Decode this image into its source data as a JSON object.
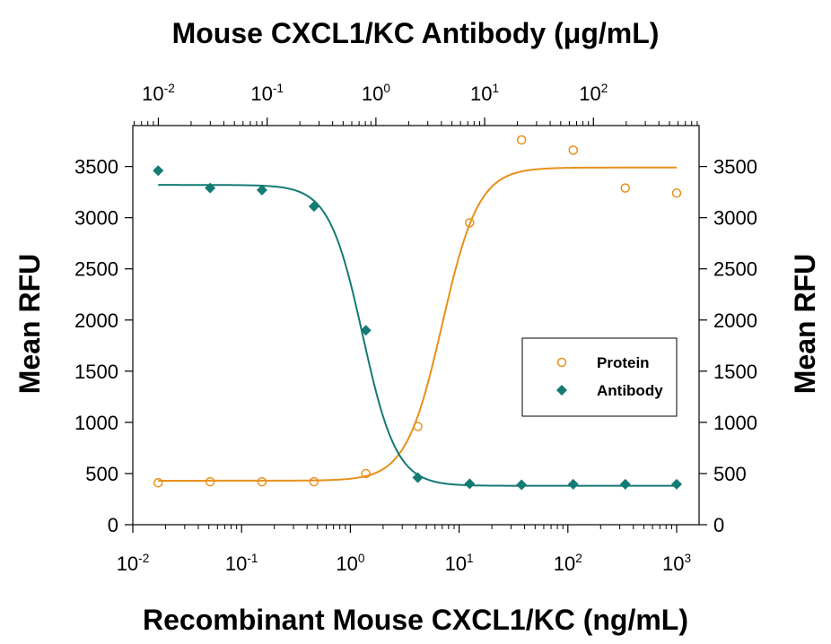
{
  "chart_data": {
    "type": "scatter",
    "top_axis_title": "Mouse CXCL1/KC Antibody (μg/mL)",
    "bottom_axis_title": "Recombinant Mouse CXCL1/KC (ng/mL)",
    "left_axis_title": "Mean RFU",
    "right_axis_title": "Mean RFU",
    "bottom_axis": {
      "scale": "log",
      "range": [
        0.01,
        1000
      ],
      "ticks": [
        0.01,
        0.1,
        1,
        10,
        100,
        1000
      ],
      "tick_labels": [
        [
          "10",
          "-2"
        ],
        [
          "10",
          "-1"
        ],
        [
          "10",
          "0"
        ],
        [
          "10",
          "1"
        ],
        [
          "10",
          "2"
        ],
        [
          "10",
          "3"
        ]
      ]
    },
    "top_axis": {
      "scale": "log",
      "ticks": [
        0.01,
        0.1,
        1,
        10,
        100
      ],
      "tick_labels": [
        [
          "10",
          "-2"
        ],
        [
          "10",
          "-1"
        ],
        [
          "10",
          "0"
        ],
        [
          "10",
          "1"
        ],
        [
          "10",
          "2"
        ]
      ]
    },
    "y_axis": {
      "range": [
        0,
        3900
      ],
      "ticks": [
        0,
        500,
        1000,
        1500,
        2000,
        2500,
        3000,
        3500
      ],
      "tick_labels": [
        "0",
        "500",
        "1000",
        "1500",
        "2000",
        "2500",
        "3000",
        "3500"
      ]
    },
    "legend": {
      "position": "right",
      "entries": [
        {
          "label": "Protein",
          "marker": "open-circle",
          "color": "#e8901a"
        },
        {
          "label": "Antibody",
          "marker": "filled-diamond",
          "color": "#137a74"
        }
      ]
    },
    "series": [
      {
        "name": "Protein",
        "axis": "bottom",
        "color": "#e8901a",
        "marker": "open-circle",
        "x": [
          0.0171,
          0.0514,
          0.154,
          0.463,
          1.39,
          4.17,
          12.5,
          37.5,
          112,
          337,
          1000
        ],
        "y": [
          410,
          420,
          420,
          420,
          500,
          960,
          2950,
          3760,
          3660,
          3290,
          3240
        ],
        "fit": {
          "bottom": 430,
          "top": 3490,
          "ec50": 7.0,
          "hill": 2.6
        }
      },
      {
        "name": "Antibody",
        "axis": "top",
        "color": "#137a74",
        "marker": "filled-diamond",
        "x_bottom_equiv": [
          0.0171,
          0.0514,
          0.154,
          0.463,
          1.39,
          4.17,
          12.5,
          37.5,
          112,
          337,
          1000
        ],
        "y": [
          3460,
          3290,
          3270,
          3110,
          1900,
          460,
          400,
          390,
          395,
          395,
          395
        ],
        "fit": {
          "bottom": 380,
          "top": 3320,
          "ec50": 1.3,
          "hill": -2.8
        }
      }
    ]
  }
}
